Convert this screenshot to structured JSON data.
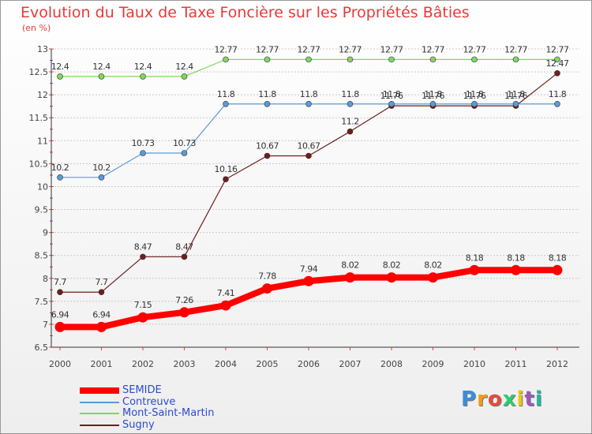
{
  "title": "Evolution du Taux de Taxe Foncière sur les Propriétés Bâties",
  "subtitle": "(en %)",
  "logo_text": "Proxiti",
  "chart_data": {
    "type": "line",
    "x": [
      "2000",
      "2001",
      "2002",
      "2003",
      "2004",
      "2005",
      "2006",
      "2007",
      "2008",
      "2009",
      "2010",
      "2011",
      "2012"
    ],
    "ylim": [
      6.5,
      13
    ],
    "yticks": [
      "6.5",
      "7",
      "7.5",
      "8",
      "8.5",
      "9",
      "9.5",
      "10",
      "10.5",
      "11",
      "11.5",
      "12",
      "12.5",
      "13"
    ],
    "grid": "horizontal dashed",
    "legend_position": "bottom-left",
    "series": [
      {
        "name": "SEMIDE",
        "color": "#ff0000",
        "bold": true,
        "values": [
          6.94,
          6.94,
          7.15,
          7.26,
          7.41,
          7.78,
          7.94,
          8.02,
          8.02,
          8.02,
          8.18,
          8.18,
          8.18
        ],
        "labels": [
          "6.94",
          "6.94",
          "7.15",
          "7.26",
          "7.41",
          "7.78",
          "7.94",
          "8.02",
          "8.02",
          "8.02",
          "8.18",
          "8.18",
          "8.18"
        ]
      },
      {
        "name": "Contreuve",
        "color": "#5b9bd5",
        "values": [
          10.2,
          10.2,
          10.73,
          10.73,
          11.8,
          11.8,
          11.8,
          11.8,
          11.8,
          11.8,
          11.8,
          11.8,
          11.8
        ],
        "labels": [
          "10.2",
          "10.2",
          "10.73",
          "10.73",
          "11.8",
          "11.8",
          "11.8",
          "11.8",
          "11.8",
          "11.8",
          "11.8",
          "11.8",
          "11.8"
        ]
      },
      {
        "name": "Mont-Saint-Martin",
        "color": "#7ed957",
        "values": [
          12.4,
          12.4,
          12.4,
          12.4,
          12.77,
          12.77,
          12.77,
          12.77,
          12.77,
          12.77,
          12.77,
          12.77,
          12.77
        ],
        "labels": [
          "12.4",
          "12.4",
          "12.4",
          "12.4",
          "12.77",
          "12.77",
          "12.77",
          "12.77",
          "12.77",
          "12.77",
          "12.77",
          "12.77",
          "12.77"
        ]
      },
      {
        "name": "Sugny",
        "color": "#6e1e1e",
        "values": [
          7.7,
          7.7,
          8.47,
          8.47,
          10.16,
          10.67,
          10.67,
          11.2,
          11.76,
          11.76,
          11.76,
          11.76,
          12.47
        ],
        "labels": [
          "7.7",
          "7.7",
          "8.47",
          "8.47",
          "10.16",
          "10.67",
          "10.67",
          "11.2",
          "11.76",
          "11.76",
          "11.76",
          "11.76",
          "12.47"
        ]
      }
    ]
  }
}
